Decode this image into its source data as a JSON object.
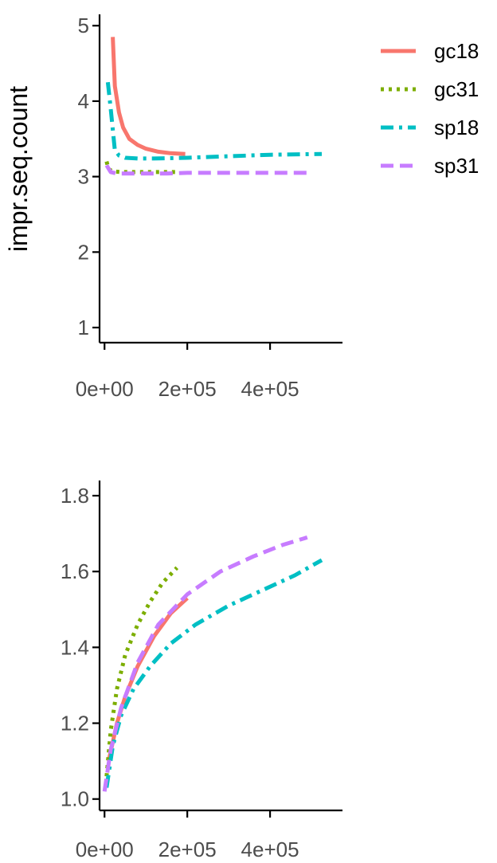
{
  "legend": {
    "position": "right",
    "entries": [
      {
        "label": "gc18",
        "color": "#F8766D",
        "dash": "solid"
      },
      {
        "label": "gc31",
        "color": "#7CAE00",
        "dash": "dotted"
      },
      {
        "label": "sp18",
        "color": "#00BFC4",
        "dash": "dashdot"
      },
      {
        "label": "sp31",
        "color": "#C77CFF",
        "dash": "dashed"
      }
    ]
  },
  "chart_data": [
    {
      "type": "line",
      "ylabel": "impr.seq.count",
      "xlabel": "",
      "ylim": [
        0.8,
        5.15
      ],
      "xlim": [
        -12000,
        575000
      ],
      "yticks": [
        {
          "value": 1,
          "label": "1"
        },
        {
          "value": 2,
          "label": "2"
        },
        {
          "value": 3,
          "label": "3"
        },
        {
          "value": 4,
          "label": "4"
        },
        {
          "value": 5,
          "label": "5"
        }
      ],
      "xticks": [
        {
          "value": 0,
          "label": "0e+00"
        },
        {
          "value": 200000,
          "label": "2e+05"
        },
        {
          "value": 400000,
          "label": "4e+05"
        }
      ],
      "series": [
        {
          "name": "gc18",
          "color": "#F8766D",
          "dash": "solid",
          "x": [
            20000,
            25000,
            35000,
            45000,
            60000,
            80000,
            100000,
            130000,
            160000,
            195000
          ],
          "y": [
            4.85,
            4.2,
            3.85,
            3.65,
            3.5,
            3.42,
            3.37,
            3.33,
            3.31,
            3.3
          ]
        },
        {
          "name": "gc31",
          "color": "#7CAE00",
          "dash": "dotted",
          "x": [
            5000,
            10000,
            20000,
            40000,
            80000,
            120000,
            175000
          ],
          "y": [
            3.2,
            3.1,
            3.07,
            3.06,
            3.06,
            3.06,
            3.06
          ]
        },
        {
          "name": "sp18",
          "color": "#00BFC4",
          "dash": "dashdot",
          "x": [
            8000,
            15000,
            25000,
            35000,
            50000,
            80000,
            120000,
            200000,
            300000,
            400000,
            525000
          ],
          "y": [
            4.25,
            3.9,
            3.35,
            3.28,
            3.25,
            3.24,
            3.24,
            3.25,
            3.27,
            3.29,
            3.3
          ]
        },
        {
          "name": "sp31",
          "color": "#C77CFF",
          "dash": "dashed",
          "x": [
            5000,
            15000,
            30000,
            60000,
            100000,
            150000,
            200000,
            300000,
            400000,
            490000
          ],
          "y": [
            3.15,
            3.06,
            3.04,
            3.04,
            3.04,
            3.04,
            3.05,
            3.05,
            3.05,
            3.05
          ]
        }
      ]
    },
    {
      "type": "line",
      "ylabel": "",
      "xlabel": "",
      "ylim": [
        0.97,
        1.84
      ],
      "xlim": [
        -12000,
        575000
      ],
      "yticks": [
        {
          "value": 1.0,
          "label": "1.0"
        },
        {
          "value": 1.2,
          "label": "1.2"
        },
        {
          "value": 1.4,
          "label": "1.4"
        },
        {
          "value": 1.6,
          "label": "1.6"
        },
        {
          "value": 1.8,
          "label": "1.8"
        }
      ],
      "xticks": [
        {
          "value": 0,
          "label": "0e+00"
        },
        {
          "value": 200000,
          "label": "2e+05"
        },
        {
          "value": 400000,
          "label": "4e+05"
        }
      ],
      "series": [
        {
          "name": "gc18",
          "color": "#F8766D",
          "dash": "solid",
          "x": [
            10000,
            30000,
            50000,
            80000,
            120000,
            160000,
            200000
          ],
          "y": [
            1.1,
            1.2,
            1.27,
            1.35,
            1.43,
            1.49,
            1.53
          ]
        },
        {
          "name": "gc31",
          "color": "#7CAE00",
          "dash": "dotted",
          "x": [
            5000,
            15000,
            30000,
            50000,
            80000,
            110000,
            140000,
            175000
          ],
          "y": [
            1.06,
            1.18,
            1.29,
            1.38,
            1.46,
            1.52,
            1.57,
            1.61
          ]
        },
        {
          "name": "sp18",
          "color": "#00BFC4",
          "dash": "dashdot",
          "x": [
            5000,
            20000,
            40000,
            70000,
            110000,
            160000,
            220000,
            300000,
            380000,
            460000,
            525000
          ],
          "y": [
            1.03,
            1.14,
            1.22,
            1.29,
            1.35,
            1.41,
            1.46,
            1.51,
            1.55,
            1.59,
            1.63
          ]
        },
        {
          "name": "sp31",
          "color": "#C77CFF",
          "dash": "dashed",
          "x": [
            0,
            15000,
            40000,
            80000,
            130000,
            200000,
            280000,
            360000,
            430000,
            490000
          ],
          "y": [
            1.02,
            1.13,
            1.24,
            1.36,
            1.46,
            1.54,
            1.6,
            1.64,
            1.67,
            1.69
          ]
        }
      ]
    }
  ]
}
